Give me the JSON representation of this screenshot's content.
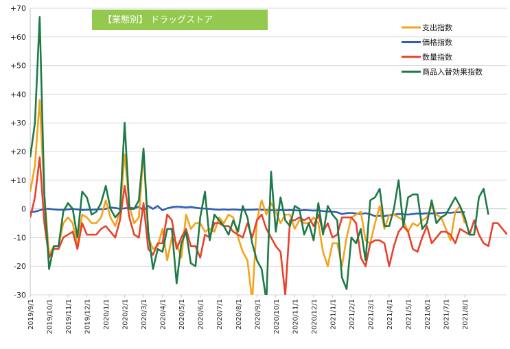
{
  "chart_data": {
    "type": "line",
    "title": "【業態別】 ドラッグストア",
    "title_bg_color": "#92c94e",
    "ylim": [
      -30,
      70
    ],
    "y_ticks": [
      -30,
      -20,
      -10,
      0,
      10,
      20,
      30,
      40,
      50,
      60,
      70
    ],
    "y_tick_labels": [
      "-30",
      "-20",
      "-10",
      "0",
      "+10",
      "+20",
      "+30",
      "+40",
      "+50",
      "+60",
      "+70"
    ],
    "x_tick_labels": [
      "2019/9/1",
      "2019/10/1",
      "2019/11/1",
      "2019/12/1",
      "2020/1/1",
      "2020/2/1",
      "2020/3/1",
      "2020/4/1",
      "2020/5/1",
      "2020/6/1",
      "2020/7/1",
      "2020/8/1",
      "2020/9/1",
      "2020/10/1",
      "2020/11/1",
      "2020/12/1",
      "2021/1/1",
      "2021/2/1",
      "2021/3/1",
      "2021/4/1",
      "2021/5/1",
      "2021/6/1",
      "2021/7/1",
      "2021/8/1"
    ],
    "points_per_month": 4,
    "grid": "horizontal",
    "legend_position": "top-right",
    "series": [
      {
        "name": "支出指数",
        "color": "#f5a31a",
        "values": [
          6,
          15,
          38,
          5,
          -16,
          -13,
          -13,
          -5,
          -3,
          -5,
          -13,
          -2,
          -3,
          -5,
          -5,
          -3,
          3,
          -3,
          -6,
          -1,
          19,
          1,
          -5,
          -3,
          20,
          -10,
          -14,
          -13,
          -7,
          -18,
          -10,
          -12,
          -17,
          -2,
          -7,
          -5,
          -5,
          -8,
          -7,
          -8,
          -3,
          -5,
          -2,
          -3,
          -10,
          -15,
          -18,
          -32,
          -4,
          3,
          -2,
          2,
          -1,
          -5,
          -2,
          -2,
          -7,
          -4,
          -5,
          -5,
          -3,
          -5,
          -15,
          -20,
          -12,
          -12,
          -20,
          -10,
          -3,
          -2,
          -1,
          -11,
          -12,
          -5,
          1,
          -7,
          -2,
          -2,
          -3,
          -4,
          -8,
          -5,
          -6,
          -4,
          -3,
          1,
          -2,
          -3,
          -7,
          -11,
          -1,
          1,
          -5
        ],
        "smooth": false
      },
      {
        "name": "価格指数",
        "color": "#2f5fb3",
        "values": [
          -1,
          -1,
          -0.5,
          0,
          0,
          -0.2,
          -0.3,
          -0.3,
          -0.2,
          0,
          -0.2,
          -0.4,
          -0.3,
          -0.3,
          -0.2,
          -0.1,
          0,
          0.5,
          0.3,
          0,
          0.2,
          0.4,
          0.2,
          0.8,
          -0.5,
          1,
          0,
          1,
          -0.5,
          0.2,
          0.6,
          0.8,
          0.7,
          0.5,
          0.7,
          0.4,
          0.2,
          0.1,
          0,
          -0.2,
          -0.3,
          -0.2,
          -0.3,
          -0.2,
          -0.3,
          -0.4,
          -0.3,
          -0.3,
          -0.2,
          -0.3,
          -0.4,
          -0.5,
          -0.5,
          -0.4,
          -0.5,
          -0.4,
          -0.5,
          -0.6,
          -0.4,
          -0.5,
          -0.6,
          -0.5,
          -0.8,
          -0.9,
          -1,
          -1.2,
          -1.8,
          -1.5,
          -1.4,
          -1.6,
          -1.8,
          -1.5,
          -1.9,
          -2.5,
          -2.4,
          -2.5,
          -2.2,
          -2,
          -1.8,
          -1.9,
          -2,
          -1.8,
          -1.6,
          -1.7,
          -1.5,
          -1.6,
          -1.5,
          -1.4,
          -1.3,
          -1.4,
          -1.2,
          -1.2,
          -1.2
        ],
        "smooth": false
      },
      {
        "name": "数量指数",
        "color": "#e8412c",
        "values": [
          -3,
          4,
          18,
          -5,
          -17,
          -14,
          -14,
          -10,
          -9,
          -8,
          -14,
          -5,
          -9,
          -9,
          -9,
          -7,
          -6,
          -8,
          -10,
          -4,
          8,
          -3,
          -9,
          -10,
          2,
          -14,
          -16,
          -12,
          -12,
          -2,
          -4,
          -14,
          -10,
          -7,
          -13,
          -13,
          -17,
          -9,
          -10,
          -5,
          -5,
          -6,
          -6,
          -8,
          -9,
          -10,
          -5,
          -10,
          -4,
          -2,
          -7,
          -10,
          -13,
          -15,
          -30,
          -4,
          -4,
          -3,
          -4,
          -3,
          -6,
          -2,
          -8,
          -5,
          -10,
          -9,
          -3,
          -3,
          -3,
          -5,
          -17,
          -20,
          -12,
          -11,
          -11,
          -12,
          -20,
          -13,
          -8,
          -6,
          -8,
          -14,
          -15,
          -10,
          -6,
          -12,
          -10,
          -8,
          -8,
          -9,
          -12,
          -7,
          -8,
          -9,
          -4,
          -9,
          -12,
          -13,
          -5,
          -5,
          -7,
          -9
        ],
        "smooth": false
      },
      {
        "name": "商品入替効果指数",
        "color": "#1e7a46",
        "values": [
          18,
          30,
          67,
          5,
          -21,
          -13,
          -13,
          -1,
          2,
          0,
          -10,
          6,
          4,
          -2,
          -1,
          2,
          8,
          0,
          -3,
          -1,
          30,
          0,
          0,
          3,
          21,
          -8,
          -21,
          -14,
          -15,
          -7,
          -7,
          -26,
          -12,
          -8,
          -19,
          -20,
          -3,
          6,
          -11,
          -2,
          -4,
          -6,
          -9,
          -4,
          -8,
          1,
          -3,
          -12,
          -18,
          -21,
          -32,
          13,
          -8,
          4,
          -4,
          -6,
          1,
          0,
          -9,
          -5,
          -11,
          2,
          -9,
          1,
          -2,
          -4,
          -24,
          -28,
          -10,
          -12,
          -7,
          -18,
          3,
          4,
          7,
          -6,
          -6,
          0,
          10,
          -6,
          4,
          5,
          5,
          -7,
          -5,
          3,
          -5,
          -3,
          -2,
          1,
          4,
          1,
          -3,
          -9,
          -9,
          4,
          7,
          -2
        ],
        "smooth": false
      }
    ]
  }
}
